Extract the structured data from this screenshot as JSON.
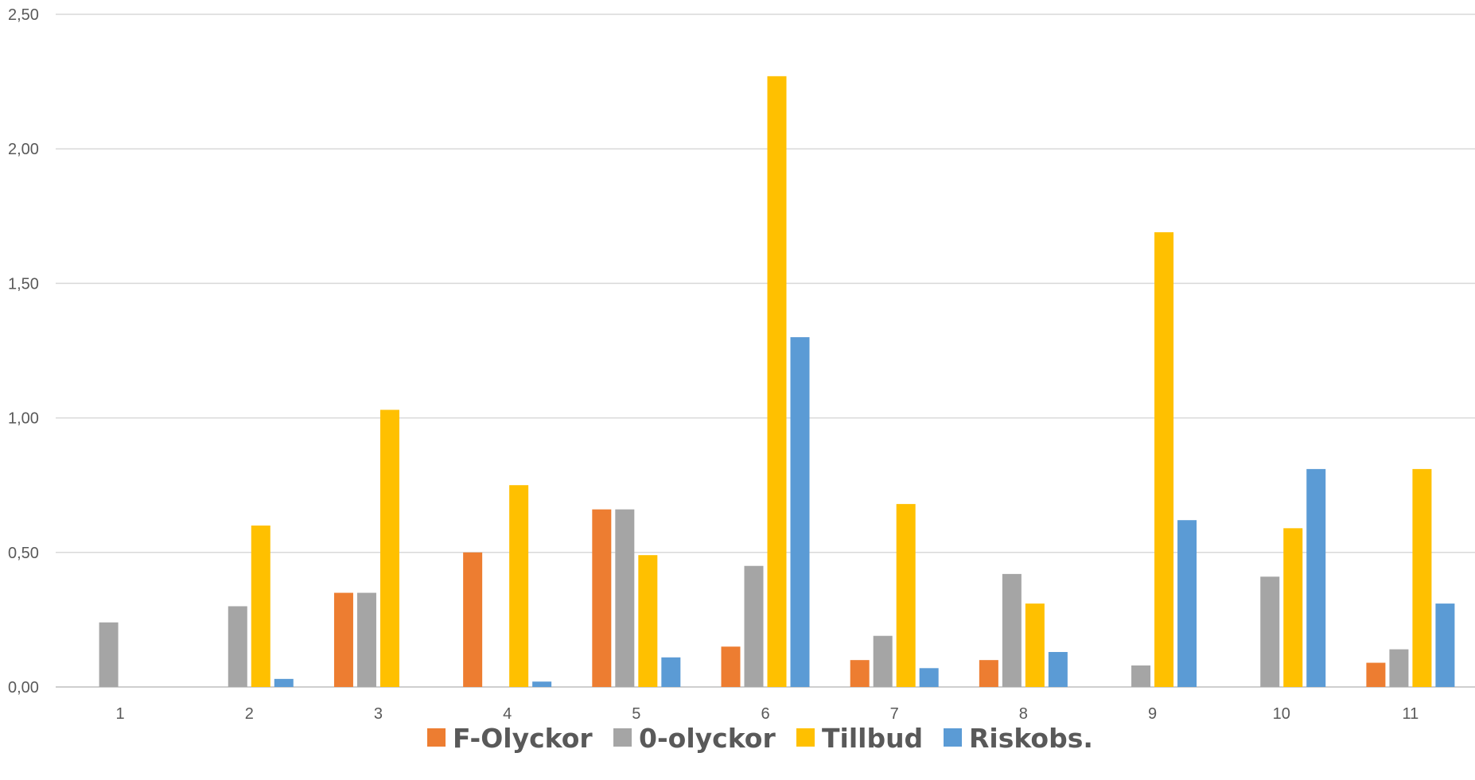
{
  "chart_data": {
    "type": "bar",
    "categories": [
      "1",
      "2",
      "3",
      "4",
      "5",
      "6",
      "7",
      "8",
      "9",
      "10",
      "11"
    ],
    "series": [
      {
        "name": "F-Olyckor",
        "color": "#ED7D31",
        "values": [
          0,
          0,
          0.35,
          0.5,
          0.66,
          0.15,
          0.1,
          0.1,
          0,
          0,
          0.09
        ]
      },
      {
        "name": "0-olyckor",
        "color": "#A5A5A5",
        "values": [
          0.24,
          0.3,
          0.35,
          0,
          0.66,
          0.45,
          0.19,
          0.42,
          0.08,
          0.41,
          0.14
        ]
      },
      {
        "name": "Tillbud",
        "color": "#FFC000",
        "values": [
          0,
          0.6,
          1.03,
          0.75,
          0.49,
          2.27,
          0.68,
          0.31,
          1.69,
          0.59,
          0.81
        ]
      },
      {
        "name": "Riskobs.",
        "color": "#5B9BD5",
        "values": [
          0,
          0.03,
          0,
          0.02,
          0.11,
          1.3,
          0.07,
          0.13,
          0.62,
          0.81,
          0.31
        ]
      }
    ],
    "yticks": [
      "0,00",
      "0,50",
      "1,00",
      "1,50",
      "2,00",
      "2,50"
    ],
    "ylim": [
      0,
      2.5
    ],
    "grid": true,
    "legend": "bottom",
    "title": "",
    "xlabel": "",
    "ylabel": ""
  }
}
